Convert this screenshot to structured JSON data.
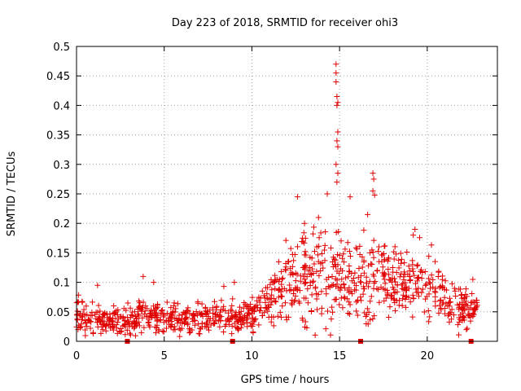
{
  "chart_data": {
    "type": "scatter",
    "title": "Day 223 of 2018, SRMTID for receiver ohi3",
    "xlabel": "GPS time / hours",
    "ylabel": "SRMTID / TECUs",
    "xlim": [
      0,
      24
    ],
    "ylim": [
      0,
      0.5
    ],
    "grid": true,
    "marker": "+",
    "color": "#e00000",
    "x_ticks": [
      0,
      5,
      10,
      15,
      20
    ],
    "x_tick_labels": [
      "0",
      "5",
      "10",
      "15",
      "20"
    ],
    "y_ticks": [
      0,
      0.05,
      0.1,
      0.15,
      0.2,
      0.25,
      0.3,
      0.35,
      0.4,
      0.45,
      0.5
    ],
    "y_tick_labels": [
      "0",
      "0.05",
      "0.1",
      "0.15",
      "0.2",
      "0.25",
      "0.3",
      "0.35",
      "0.4",
      "0.45",
      "0.5"
    ],
    "x_range_observed": [
      0,
      22.9
    ],
    "envelope": [
      {
        "x": 0.0,
        "y": 0.04,
        "spread": 0.015
      },
      {
        "x": 1.0,
        "y": 0.035,
        "spread": 0.012
      },
      {
        "x": 2.0,
        "y": 0.035,
        "spread": 0.012
      },
      {
        "x": 3.0,
        "y": 0.035,
        "spread": 0.013
      },
      {
        "x": 4.0,
        "y": 0.045,
        "spread": 0.014
      },
      {
        "x": 5.0,
        "y": 0.04,
        "spread": 0.013
      },
      {
        "x": 6.0,
        "y": 0.035,
        "spread": 0.012
      },
      {
        "x": 7.0,
        "y": 0.04,
        "spread": 0.013
      },
      {
        "x": 8.0,
        "y": 0.045,
        "spread": 0.013
      },
      {
        "x": 9.0,
        "y": 0.04,
        "spread": 0.012
      },
      {
        "x": 10.0,
        "y": 0.045,
        "spread": 0.013
      },
      {
        "x": 11.0,
        "y": 0.07,
        "spread": 0.02
      },
      {
        "x": 12.0,
        "y": 0.095,
        "spread": 0.03
      },
      {
        "x": 13.0,
        "y": 0.11,
        "spread": 0.035
      },
      {
        "x": 14.0,
        "y": 0.12,
        "spread": 0.04
      },
      {
        "x": 15.0,
        "y": 0.1,
        "spread": 0.035
      },
      {
        "x": 16.0,
        "y": 0.11,
        "spread": 0.035
      },
      {
        "x": 17.0,
        "y": 0.11,
        "spread": 0.035
      },
      {
        "x": 18.0,
        "y": 0.1,
        "spread": 0.03
      },
      {
        "x": 19.0,
        "y": 0.1,
        "spread": 0.03
      },
      {
        "x": 20.0,
        "y": 0.095,
        "spread": 0.028
      },
      {
        "x": 21.0,
        "y": 0.08,
        "spread": 0.025
      },
      {
        "x": 22.0,
        "y": 0.055,
        "spread": 0.018
      },
      {
        "x": 22.9,
        "y": 0.06,
        "spread": 0.018
      }
    ],
    "highlighted_points": [
      {
        "x": 14.8,
        "y": 0.47
      },
      {
        "x": 14.8,
        "y": 0.455
      },
      {
        "x": 14.8,
        "y": 0.44
      },
      {
        "x": 14.85,
        "y": 0.415
      },
      {
        "x": 14.9,
        "y": 0.405
      },
      {
        "x": 14.85,
        "y": 0.4
      },
      {
        "x": 14.9,
        "y": 0.355
      },
      {
        "x": 14.85,
        "y": 0.34
      },
      {
        "x": 14.9,
        "y": 0.33
      },
      {
        "x": 14.8,
        "y": 0.3
      },
      {
        "x": 14.9,
        "y": 0.285
      },
      {
        "x": 14.85,
        "y": 0.27
      },
      {
        "x": 16.9,
        "y": 0.285
      },
      {
        "x": 16.95,
        "y": 0.275
      },
      {
        "x": 16.9,
        "y": 0.255
      },
      {
        "x": 17.0,
        "y": 0.248
      },
      {
        "x": 12.6,
        "y": 0.245
      },
      {
        "x": 14.3,
        "y": 0.25
      },
      {
        "x": 15.6,
        "y": 0.245
      },
      {
        "x": 13.0,
        "y": 0.2
      },
      {
        "x": 13.8,
        "y": 0.21
      },
      {
        "x": 16.6,
        "y": 0.215
      },
      {
        "x": 19.3,
        "y": 0.19
      },
      {
        "x": 19.2,
        "y": 0.18
      },
      {
        "x": 3.8,
        "y": 0.11
      },
      {
        "x": 4.4,
        "y": 0.1
      },
      {
        "x": 1.2,
        "y": 0.095
      },
      {
        "x": 9.0,
        "y": 0.1
      },
      {
        "x": 8.4,
        "y": 0.093
      },
      {
        "x": 22.6,
        "y": 0.105
      }
    ],
    "axis_markers_x": [
      2.9,
      8.9,
      16.2,
      22.5
    ],
    "note": "Scatter of SRMTID values vs GPS time; individual samples approximated by a per-hour envelope (center y and spread) plus highlighted visible extreme points."
  }
}
